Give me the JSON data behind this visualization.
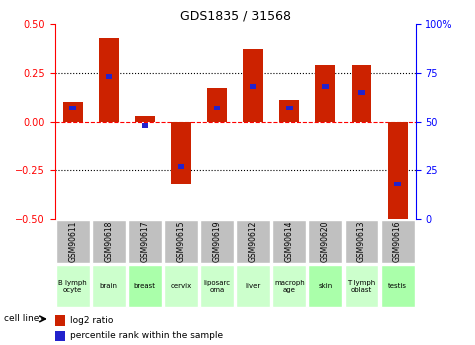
{
  "title": "GDS1835 / 31568",
  "gsm_labels": [
    "GSM90611",
    "GSM90618",
    "GSM90617",
    "GSM90615",
    "GSM90619",
    "GSM90612",
    "GSM90614",
    "GSM90620",
    "GSM90613",
    "GSM90616"
  ],
  "cell_lines": [
    "B lymph\nocyte",
    "brain",
    "breast",
    "cervix",
    "liposarc\noma",
    "liver",
    "macroph\nage",
    "skin",
    "T lymph\noblast",
    "testis"
  ],
  "cell_line_bg": [
    "#ccffcc",
    "#ccffcc",
    "#aaffaa",
    "#ccffcc",
    "#ccffcc",
    "#ccffcc",
    "#ccffcc",
    "#aaffaa",
    "#ccffcc",
    "#aaffaa"
  ],
  "log2_ratio": [
    0.1,
    0.43,
    0.03,
    -0.32,
    0.17,
    0.37,
    0.11,
    0.29,
    0.29,
    -0.52
  ],
  "percentile_rank": [
    0.57,
    0.73,
    0.48,
    0.27,
    0.57,
    0.68,
    0.57,
    0.68,
    0.65,
    0.18
  ],
  "bar_color_red": "#cc2200",
  "bar_color_blue": "#2222cc",
  "ylim_left": [
    -0.5,
    0.5
  ],
  "ylim_right": [
    0,
    100
  ],
  "yticks_left": [
    -0.5,
    -0.25,
    0,
    0.25,
    0.5
  ],
  "yticks_right": [
    0,
    25,
    50,
    75,
    100
  ],
  "gsm_bg_color": "#c0c0c0",
  "cell_line_bg_green": "#ccffcc",
  "bar_width": 0.55,
  "pct_bar_width": 0.18,
  "pct_bar_height": 0.025,
  "legend_log2": "log2 ratio",
  "legend_percentile": "percentile rank within the sample"
}
